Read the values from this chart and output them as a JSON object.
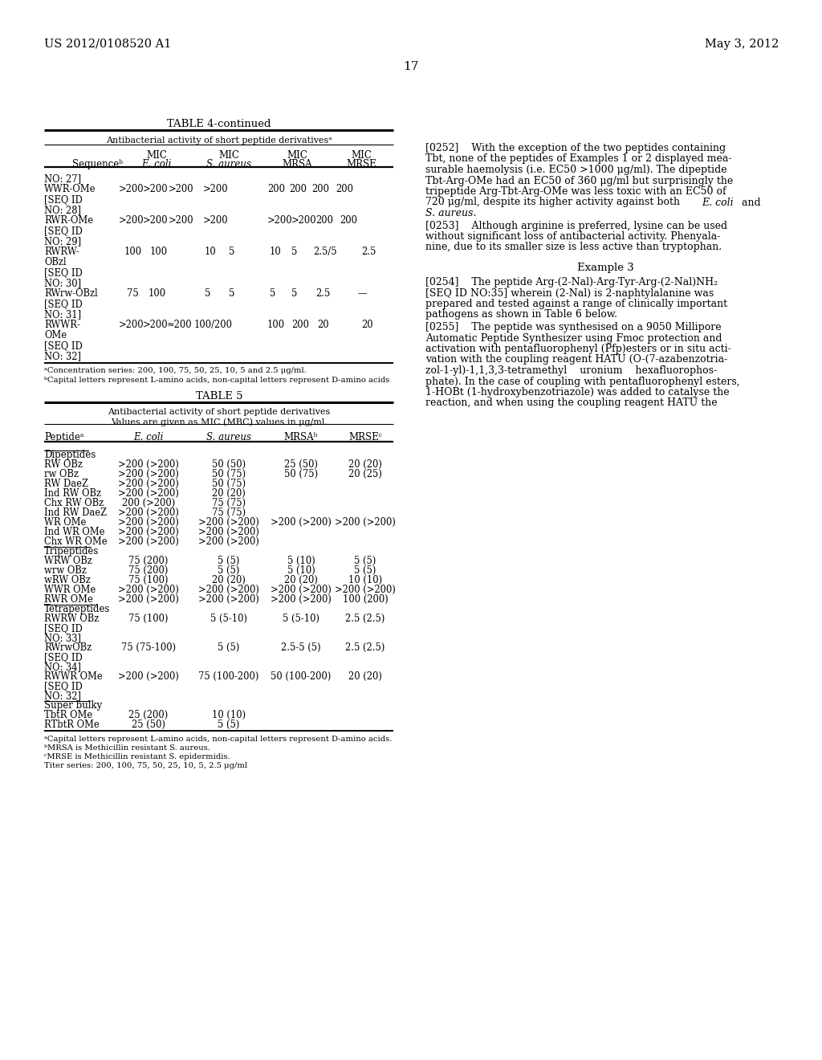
{
  "header_left": "US 2012/0108520 A1",
  "header_right": "May 3, 2012",
  "page_number": "17",
  "background_color": "#ffffff"
}
